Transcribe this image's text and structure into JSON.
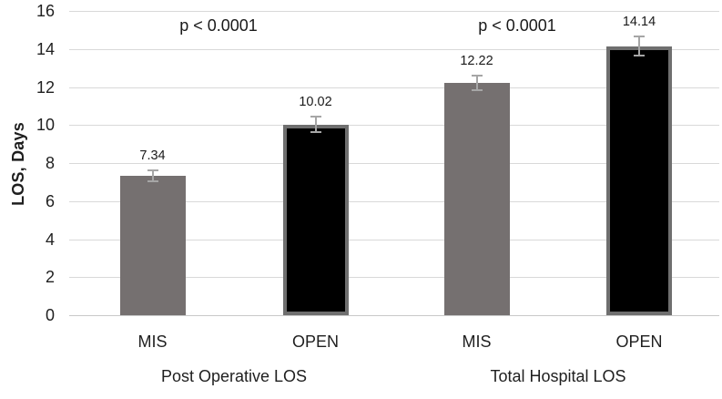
{
  "chart_data": {
    "type": "bar",
    "title": "",
    "xlabel": "",
    "ylabel": "LOS, Days",
    "ylim": [
      0,
      16
    ],
    "yticks": [
      0,
      2,
      4,
      6,
      8,
      10,
      12,
      14,
      16
    ],
    "grid": true,
    "legend": "none",
    "groups": [
      {
        "label": "Post Operative LOS",
        "p_value": "p < 0.0001",
        "bars": [
          {
            "category": "MIS",
            "value": 7.34,
            "value_label": "7.34",
            "error": 0.3,
            "fill": "#757070",
            "border": null
          },
          {
            "category": "OPEN",
            "value": 10.02,
            "value_label": "10.02",
            "error": 0.4,
            "fill": "#000000",
            "border": "#6f6f6f"
          }
        ]
      },
      {
        "label": "Total Hospital LOS",
        "p_value": "p < 0.0001",
        "bars": [
          {
            "category": "MIS",
            "value": 12.22,
            "value_label": "12.22",
            "error": 0.4,
            "fill": "#757070",
            "border": null
          },
          {
            "category": "OPEN",
            "value": 14.14,
            "value_label": "14.14",
            "error": 0.5,
            "fill": "#000000",
            "border": "#6f6f6f"
          }
        ]
      }
    ],
    "colors": {
      "gray_bar": "#757070",
      "black_bar": "#000000",
      "black_bar_border": "#6f6f6f",
      "error_bar": "#a6a6a6",
      "gridline": "#d9d9d9",
      "text": "#1f1f1f"
    }
  }
}
